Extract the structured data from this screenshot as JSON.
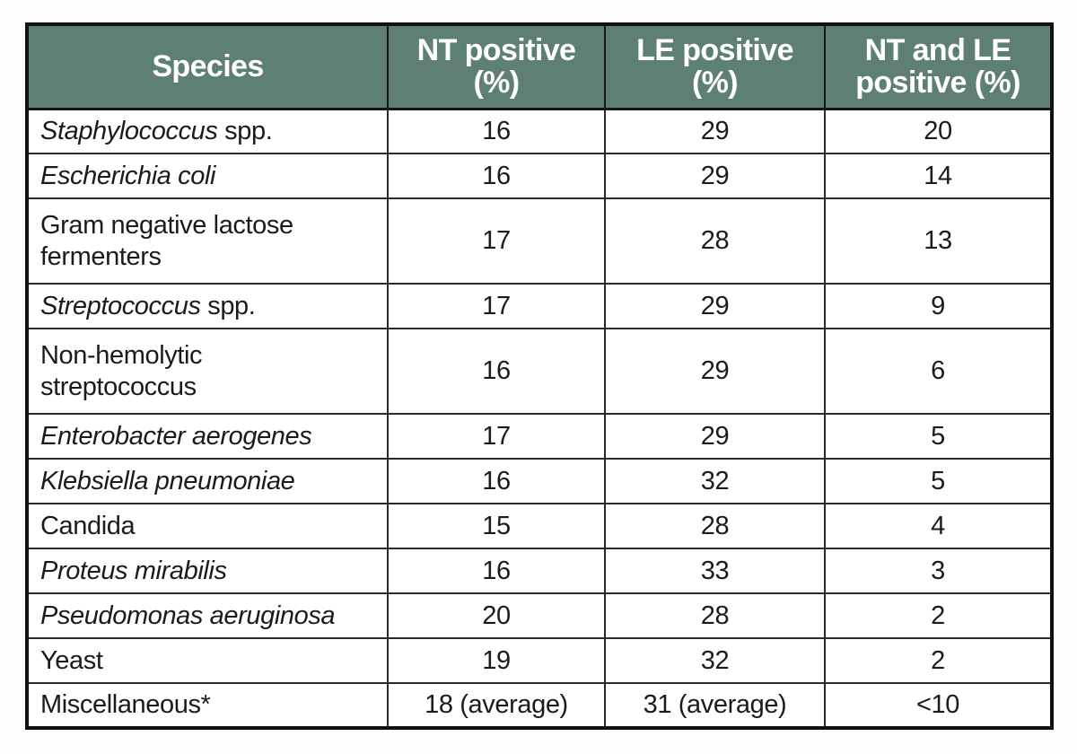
{
  "colors": {
    "header_bg": "#5e7f76",
    "header_text": "#ffffff",
    "body_text": "#1b1b1b",
    "border": "#111111",
    "page_bg": "#fdfdfb"
  },
  "table": {
    "headers": [
      {
        "line1": "Species",
        "line2": ""
      },
      {
        "line1": "NT positive",
        "line2": "(%)"
      },
      {
        "line1": "LE positive",
        "line2": "(%)"
      },
      {
        "line1": "NT and LE",
        "line2": "positive (%)"
      }
    ],
    "rows": [
      {
        "species_italic": "Staphylococcus",
        "species_regular": " spp.",
        "nt": "16",
        "le": "29",
        "nt_le": "20"
      },
      {
        "species_italic": "Escherichia coli",
        "species_regular": "",
        "nt": "16",
        "le": "29",
        "nt_le": "14"
      },
      {
        "species_italic": "",
        "species_regular": "Gram negative lactose\nfermenters",
        "nt": "17",
        "le": "28",
        "nt_le": "13"
      },
      {
        "species_italic": "Streptococcus",
        "species_regular": " spp.",
        "nt": "17",
        "le": "29",
        "nt_le": "9"
      },
      {
        "species_italic": "",
        "species_regular": "Non-hemolytic\nstreptococcus",
        "nt": "16",
        "le": "29",
        "nt_le": "6"
      },
      {
        "species_italic": "Enterobacter aerogenes",
        "species_regular": "",
        "nt": "17",
        "le": "29",
        "nt_le": "5"
      },
      {
        "species_italic": "Klebsiella pneumoniae",
        "species_regular": "",
        "nt": "16",
        "le": "32",
        "nt_le": "5"
      },
      {
        "species_italic": "",
        "species_regular": "Candida",
        "nt": "15",
        "le": "28",
        "nt_le": "4"
      },
      {
        "species_italic": "Proteus mirabilis",
        "species_regular": "",
        "nt": "16",
        "le": "33",
        "nt_le": "3"
      },
      {
        "species_italic": "Pseudomonas aeruginosa",
        "species_regular": "",
        "nt": "20",
        "le": "28",
        "nt_le": "2"
      },
      {
        "species_italic": "",
        "species_regular": "Yeast",
        "nt": "19",
        "le": "32",
        "nt_le": "2"
      },
      {
        "species_italic": "",
        "species_regular": "Miscellaneous*",
        "nt": "18 (average)",
        "le": "31 (average)",
        "nt_le": "<10"
      }
    ]
  },
  "chart_data": {
    "type": "table",
    "title": "",
    "columns": [
      "Species",
      "NT positive (%)",
      "LE positive (%)",
      "NT and LE positive (%)"
    ],
    "rows": [
      [
        "Staphylococcus spp.",
        16,
        29,
        20
      ],
      [
        "Escherichia coli",
        16,
        29,
        14
      ],
      [
        "Gram negative lactose fermenters",
        17,
        28,
        13
      ],
      [
        "Streptococcus spp.",
        17,
        29,
        9
      ],
      [
        "Non-hemolytic streptococcus",
        16,
        29,
        6
      ],
      [
        "Enterobacter aerogenes",
        17,
        29,
        5
      ],
      [
        "Klebsiella pneumoniae",
        16,
        32,
        5
      ],
      [
        "Candida",
        15,
        28,
        4
      ],
      [
        "Proteus mirabilis",
        16,
        33,
        3
      ],
      [
        "Pseudomonas aeruginosa",
        20,
        28,
        2
      ],
      [
        "Yeast",
        19,
        32,
        2
      ],
      [
        "Miscellaneous*",
        "18 (average)",
        "31 (average)",
        "<10"
      ]
    ]
  }
}
